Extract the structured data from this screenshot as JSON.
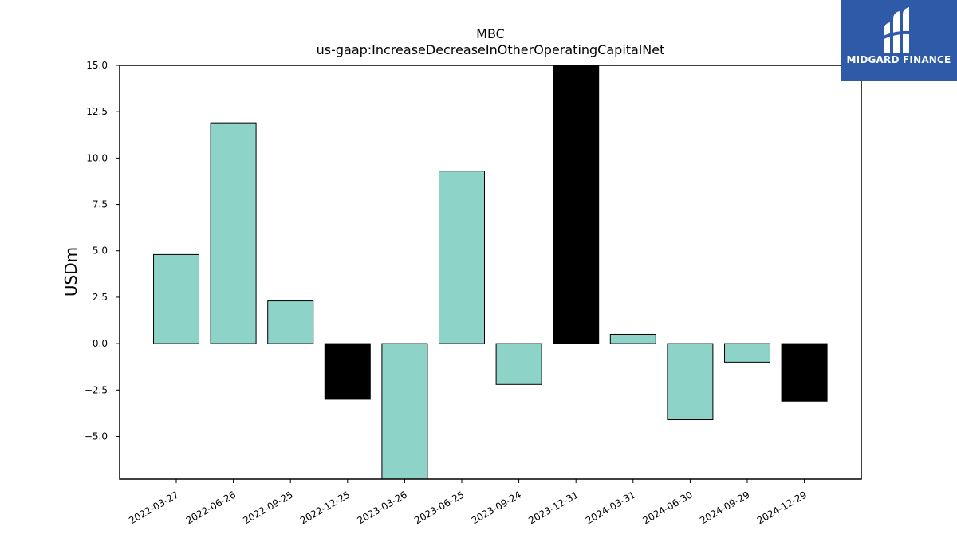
{
  "chart_data": {
    "type": "bar",
    "title": "MBC",
    "subtitle": "us-gaap:IncreaseDecreaseInOtherOperatingCapitalNet",
    "ylabel": "USDm",
    "xlabel": "",
    "ylim": [
      -7.3,
      15.0
    ],
    "yticks": [
      -5.0,
      -2.5,
      0.0,
      2.5,
      5.0,
      7.5,
      10.0,
      12.5,
      15.0
    ],
    "ytick_labels": [
      "−5.0",
      "−2.5",
      "0.0",
      "2.5",
      "5.0",
      "7.5",
      "10.0",
      "12.5",
      "15.0"
    ],
    "categories": [
      "2022-03-27",
      "2022-06-26",
      "2022-09-25",
      "2022-12-25",
      "2023-03-26",
      "2023-06-25",
      "2023-09-24",
      "2023-12-31",
      "2024-03-31",
      "2024-06-30",
      "2024-09-29",
      "2024-12-29"
    ],
    "values": [
      4.8,
      11.9,
      2.3,
      -3.0,
      -7.3,
      9.3,
      -2.2,
      15.0,
      0.5,
      -4.1,
      -1.0,
      -3.1
    ],
    "bar_colors": [
      "#8dd3c7",
      "#8dd3c7",
      "#8dd3c7",
      "#000000",
      "#8dd3c7",
      "#8dd3c7",
      "#8dd3c7",
      "#000000",
      "#8dd3c7",
      "#8dd3c7",
      "#8dd3c7",
      "#000000"
    ],
    "grid": false,
    "legend": "none"
  },
  "logo": {
    "text": "MIDGARD FINANCE",
    "background": "#2f5aa8",
    "icon": "midgard-logo-icon"
  }
}
